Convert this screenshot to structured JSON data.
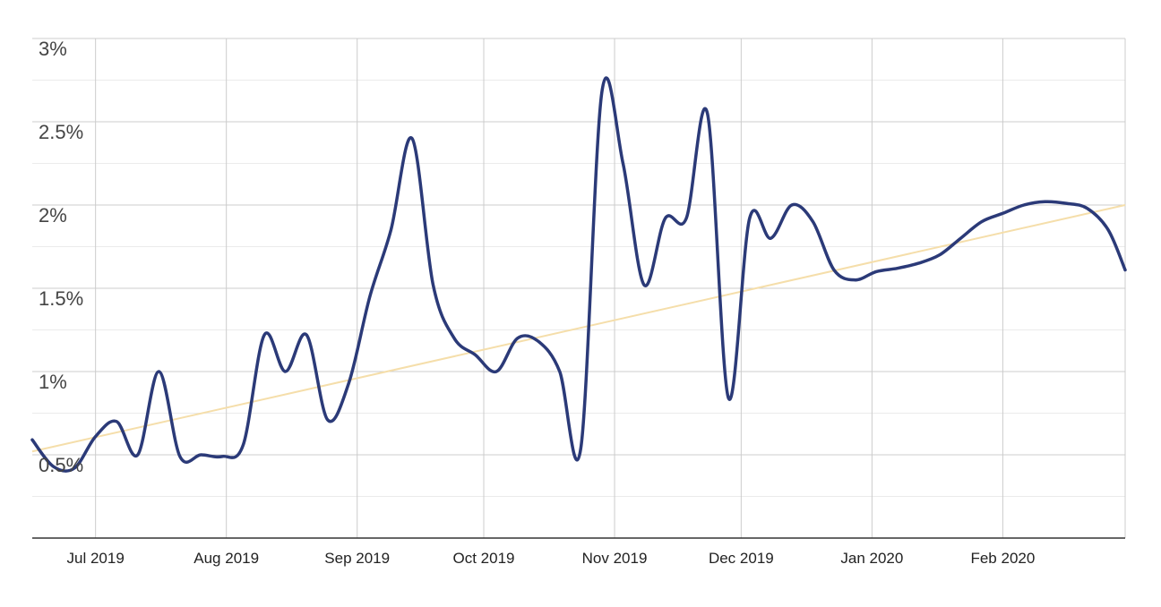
{
  "chart_data": {
    "type": "line",
    "title": "",
    "xlabel": "",
    "ylabel": "",
    "y_ticks": [
      "0.5%",
      "1%",
      "1.5%",
      "2%",
      "2.5%",
      "3%"
    ],
    "y_tick_values": [
      0.5,
      1.0,
      1.5,
      2.0,
      2.5,
      3.0
    ],
    "ylim": [
      0.0,
      3.0
    ],
    "x_ticks": [
      "Jul 2019",
      "Aug 2019",
      "Sep 2019",
      "Oct 2019",
      "Nov 2019",
      "Dec 2019",
      "Jan 2020",
      "Feb 2020"
    ],
    "x_tick_dates": [
      "2019-07-01",
      "2019-08-01",
      "2019-09-01",
      "2019-10-01",
      "2019-11-01",
      "2019-12-01",
      "2020-01-01",
      "2020-02-01"
    ],
    "xlim": [
      "2019-06-16",
      "2020-03-01"
    ],
    "grid": true,
    "legend": "none",
    "series": [
      {
        "color": "#2b3a78",
        "x": [
          "2019-06-16",
          "2019-06-21",
          "2019-06-26",
          "2019-07-01",
          "2019-07-06",
          "2019-07-11",
          "2019-07-16",
          "2019-07-21",
          "2019-07-26",
          "2019-07-31",
          "2019-08-05",
          "2019-08-10",
          "2019-08-15",
          "2019-08-20",
          "2019-08-25",
          "2019-08-30",
          "2019-09-04",
          "2019-09-09",
          "2019-09-14",
          "2019-09-19",
          "2019-09-24",
          "2019-09-29",
          "2019-10-04",
          "2019-10-09",
          "2019-10-14",
          "2019-10-19",
          "2019-10-24",
          "2019-10-29",
          "2019-11-03",
          "2019-11-08",
          "2019-11-13",
          "2019-11-18",
          "2019-11-23",
          "2019-11-28",
          "2019-12-03",
          "2019-12-08",
          "2019-12-13",
          "2019-12-18",
          "2019-12-23",
          "2019-12-28",
          "2020-01-02",
          "2020-01-07",
          "2020-01-12",
          "2020-01-17",
          "2020-01-22",
          "2020-01-27",
          "2020-02-01",
          "2020-02-06",
          "2020-02-11",
          "2020-02-16",
          "2020-02-21",
          "2020-02-26",
          "2020-03-01"
        ],
        "values": [
          0.59,
          0.43,
          0.42,
          0.61,
          0.7,
          0.5,
          1.0,
          0.49,
          0.5,
          0.49,
          0.56,
          1.22,
          1.0,
          1.22,
          0.71,
          0.93,
          1.45,
          1.85,
          2.4,
          1.52,
          1.2,
          1.1,
          1.0,
          1.2,
          1.18,
          1.0,
          0.54,
          2.68,
          2.25,
          1.52,
          1.92,
          1.92,
          2.55,
          0.84,
          1.92,
          1.8,
          2.0,
          1.9,
          1.61,
          1.55,
          1.6,
          1.62,
          1.65,
          1.7,
          1.8,
          1.9,
          1.95,
          2.0,
          2.02,
          2.01,
          1.98,
          1.85,
          1.61
        ]
      }
    ],
    "trendline": {
      "color": "#f5deaa",
      "start_value": 0.52,
      "end_value": 2.0
    }
  }
}
